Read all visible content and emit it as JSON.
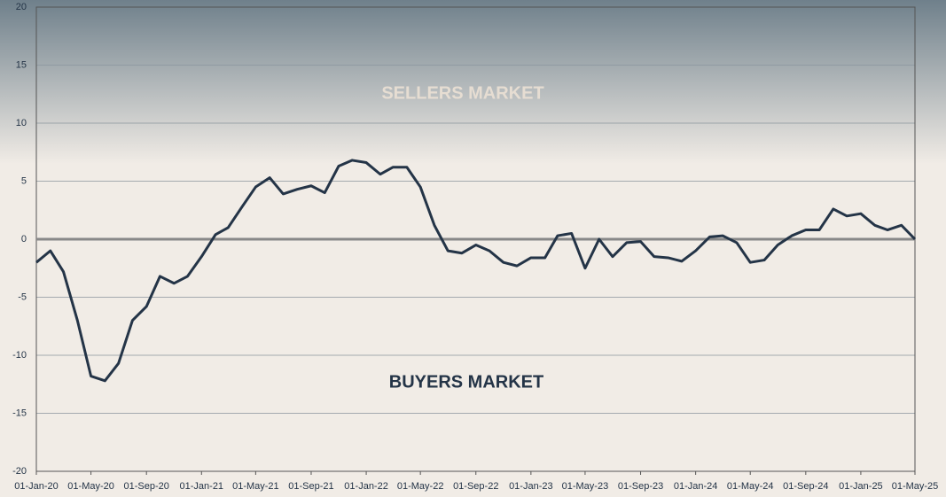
{
  "chart_data": {
    "type": "line",
    "annotations": [
      "SELLERS MARKET",
      "BUYERS MARKET"
    ],
    "x": [
      "2020-01-01",
      "2020-02-01",
      "2020-03-01",
      "2020-04-01",
      "2020-05-01",
      "2020-06-01",
      "2020-07-01",
      "2020-08-01",
      "2020-09-01",
      "2020-10-01",
      "2020-11-01",
      "2020-12-01",
      "2021-01-01",
      "2021-02-01",
      "2021-03-01",
      "2021-04-01",
      "2021-05-01",
      "2021-06-01",
      "2021-07-01",
      "2021-08-01",
      "2021-09-01",
      "2021-10-01",
      "2021-11-01",
      "2021-12-01",
      "2022-01-01",
      "2022-02-01",
      "2022-03-01",
      "2022-04-01",
      "2022-05-01",
      "2022-06-01",
      "2022-07-01",
      "2022-08-01",
      "2022-09-01",
      "2022-10-01",
      "2022-11-01",
      "2022-12-01",
      "2023-01-01",
      "2023-02-01",
      "2023-03-01",
      "2023-04-01",
      "2023-05-01",
      "2023-06-01",
      "2023-07-01",
      "2023-08-01",
      "2023-09-01",
      "2023-10-01",
      "2023-11-01",
      "2023-12-01",
      "2024-01-01",
      "2024-02-01",
      "2024-03-01",
      "2024-04-01",
      "2024-05-01",
      "2024-06-01",
      "2024-07-01",
      "2024-08-01",
      "2024-09-01",
      "2024-10-01",
      "2024-11-01",
      "2024-12-01",
      "2025-01-01",
      "2025-02-01",
      "2025-03-01",
      "2025-04-01",
      "2025-05-01"
    ],
    "series": [
      {
        "color": "#243447",
        "values": [
          -2,
          -1,
          -2.8,
          -7,
          -11.8,
          -12.2,
          -10.7,
          -7,
          -5.8,
          -3.2,
          -3.8,
          -3.2,
          -1.5,
          0.4,
          1,
          2.8,
          4.5,
          5.3,
          3.9,
          4.3,
          4.6,
          4,
          6.3,
          6.8,
          6.6,
          5.6,
          6.2,
          6.2,
          4.5,
          1.2,
          -1,
          -1.2,
          -0.5,
          -1,
          -2,
          -2.3,
          -1.6,
          -1.6,
          0.3,
          0.5,
          -2.5,
          0,
          -1.5,
          -0.3,
          -0.2,
          -1.5,
          -1.6,
          -1.9,
          -1,
          0.2,
          0.3,
          -0.3,
          -2,
          -1.8,
          -0.5,
          0.3,
          0.8,
          0.8,
          2.6,
          2,
          2.2,
          1.2,
          0.8,
          1.2,
          0
        ]
      }
    ],
    "xlim": [
      "2020-01-01",
      "2025-05-01"
    ],
    "xticks": [
      {
        "value": "2020-01-01",
        "label": "01-Jan-20"
      },
      {
        "value": "2020-05-01",
        "label": "01-May-20"
      },
      {
        "value": "2020-09-01",
        "label": "01-Sep-20"
      },
      {
        "value": "2021-01-01",
        "label": "01-Jan-21"
      },
      {
        "value": "2021-05-01",
        "label": "01-May-21"
      },
      {
        "value": "2021-09-01",
        "label": "01-Sep-21"
      },
      {
        "value": "2022-01-01",
        "label": "01-Jan-22"
      },
      {
        "value": "2022-05-01",
        "label": "01-May-22"
      },
      {
        "value": "2022-09-01",
        "label": "01-Sep-22"
      },
      {
        "value": "2023-01-01",
        "label": "01-Jan-23"
      },
      {
        "value": "2023-05-01",
        "label": "01-May-23"
      },
      {
        "value": "2023-09-01",
        "label": "01-Sep-23"
      },
      {
        "value": "2024-01-01",
        "label": "01-Jan-24"
      },
      {
        "value": "2024-05-01",
        "label": "01-May-24"
      },
      {
        "value": "2024-09-01",
        "label": "01-Sep-24"
      },
      {
        "value": "2025-01-01",
        "label": "01-Jan-25"
      },
      {
        "value": "2025-05-01",
        "label": "01-May-25"
      }
    ],
    "ylim": [
      -20,
      20
    ],
    "yticks": [
      -20,
      -15,
      -10,
      -5,
      0,
      5,
      10,
      15,
      20
    ],
    "grid": true
  }
}
